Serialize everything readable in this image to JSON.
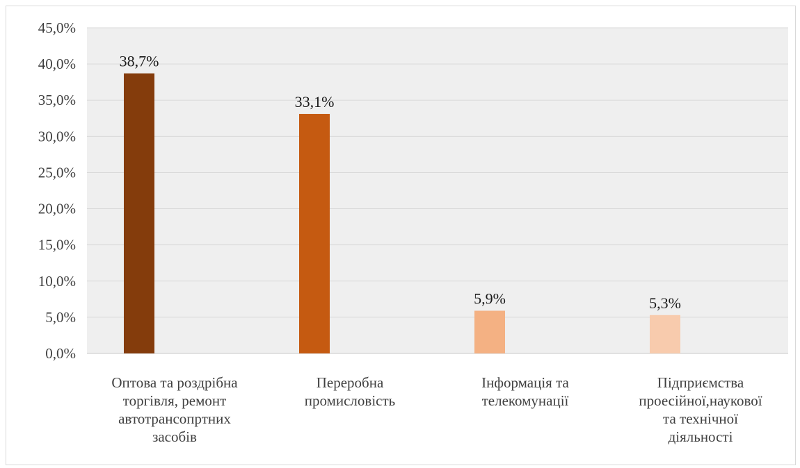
{
  "colors": {
    "plot_bg": "#efefef",
    "grid": "#dadada",
    "axis": "#c8c8c8",
    "bars": [
      "#843c0c",
      "#c55a11",
      "#f4b183",
      "#f8cbad"
    ]
  },
  "chart_data": {
    "type": "bar",
    "title": "",
    "xlabel": "",
    "ylabel": "",
    "ylim": [
      0,
      45
    ],
    "yticks": [
      "0,0%",
      "5,0%",
      "10,0%",
      "15,0%",
      "20,0%",
      "25,0%",
      "30,0%",
      "35,0%",
      "40,0%",
      "45,0%"
    ],
    "grid": true,
    "legend": "none",
    "categories": [
      [
        "Оптова та роздрібна",
        "торгівля, ремонт",
        "автотрансопртних",
        "засобів"
      ],
      [
        "Переробна",
        "промисловість"
      ],
      [
        "Інформація та",
        "телекомунації"
      ],
      [
        "Підприємства",
        "проесійної,наукової",
        "та технічної",
        "діяльності"
      ]
    ],
    "values": [
      38.7,
      33.1,
      5.9,
      5.3
    ],
    "data_labels": [
      "38,7%",
      "33,1%",
      "5,9%",
      "5,3%"
    ]
  }
}
